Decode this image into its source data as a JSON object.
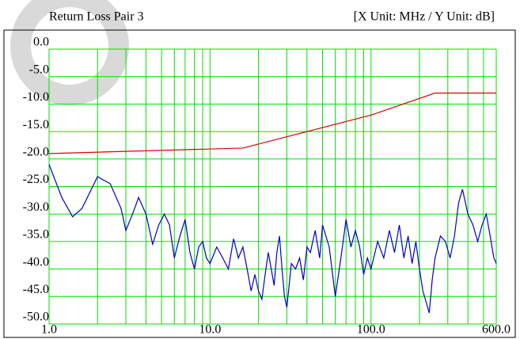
{
  "chart_data": {
    "type": "line",
    "title": "Return Loss Pair 3",
    "subtitle": "[X Unit: MHz / Y Unit: dB]",
    "log_x": true,
    "grid": true,
    "grid_color": "#00e000",
    "xlim": [
      1,
      600
    ],
    "xticks": [
      {
        "value": 1,
        "label": "1.0"
      },
      {
        "value": 10,
        "label": "10.0"
      },
      {
        "value": 100,
        "label": "100.0"
      },
      {
        "value": 600,
        "label": "600.0"
      }
    ],
    "xminor": [
      2,
      3,
      4,
      5,
      6,
      7,
      8,
      9,
      20,
      30,
      40,
      50,
      60,
      70,
      80,
      90,
      200,
      300,
      400,
      500
    ],
    "ylim": [
      -50,
      0
    ],
    "yticks": [
      {
        "value": 0,
        "label": "0.0"
      },
      {
        "value": -5,
        "label": "-5.0"
      },
      {
        "value": -10,
        "label": "-10.0"
      },
      {
        "value": -15,
        "label": "-15.0"
      },
      {
        "value": -20,
        "label": "-20.0"
      },
      {
        "value": -25,
        "label": "-25.0"
      },
      {
        "value": -30,
        "label": "-30.0"
      },
      {
        "value": -35,
        "label": "-35.0"
      },
      {
        "value": -40,
        "label": "-40.0"
      },
      {
        "value": -45,
        "label": "-45.0"
      },
      {
        "value": -50,
        "label": "-50.0"
      }
    ],
    "series": [
      {
        "color": "#e00000",
        "x": [
          1,
          16,
          100,
          250,
          600
        ],
        "values": [
          -19,
          -18,
          -12,
          -8,
          -8
        ]
      },
      {
        "color": "#0000c8",
        "x": [
          1,
          1.2,
          1.4,
          1.6,
          2,
          2.4,
          2.8,
          3,
          3.3,
          3.6,
          4,
          4.4,
          4.8,
          5.2,
          5.6,
          6,
          6.5,
          7,
          7.5,
          8,
          8.5,
          9,
          9.5,
          10,
          11,
          12,
          13,
          14,
          15,
          16,
          17,
          18,
          19,
          20,
          21,
          22,
          23,
          24,
          25,
          26,
          27,
          28,
          29,
          30,
          32,
          34,
          36,
          38,
          40,
          42,
          45,
          48,
          50,
          55,
          60,
          65,
          70,
          75,
          80,
          85,
          90,
          95,
          100,
          110,
          120,
          130,
          140,
          150,
          160,
          170,
          180,
          190,
          200,
          210,
          220,
          230,
          240,
          250,
          270,
          290,
          310,
          330,
          350,
          370,
          400,
          430,
          460,
          490,
          520,
          550,
          580,
          600
        ],
        "values": [
          -21,
          -27,
          -30.5,
          -29,
          -23.2,
          -24.5,
          -29,
          -33,
          -30,
          -27,
          -30,
          -35.5,
          -32,
          -30,
          -32,
          -38,
          -34,
          -31,
          -37,
          -40,
          -36,
          -35,
          -38,
          -39,
          -36,
          -38,
          -40,
          -34.5,
          -38,
          -36,
          -40,
          -44,
          -41,
          -44,
          -45.5,
          -41,
          -37,
          -40,
          -43,
          -37,
          -34,
          -40,
          -45,
          -47,
          -39,
          -40,
          -38,
          -42,
          -36,
          -37,
          -33,
          -38,
          -32,
          -36,
          -45,
          -38,
          -31,
          -36,
          -33,
          -36,
          -41,
          -38,
          -40,
          -35,
          -38,
          -33,
          -37,
          -32,
          -38,
          -34,
          -39,
          -35,
          -40,
          -44,
          -46,
          -48,
          -42,
          -38,
          -34,
          -35,
          -38,
          -34,
          -28,
          -25.5,
          -30,
          -32,
          -35,
          -32,
          -30,
          -34,
          -38,
          -39
        ]
      }
    ]
  }
}
